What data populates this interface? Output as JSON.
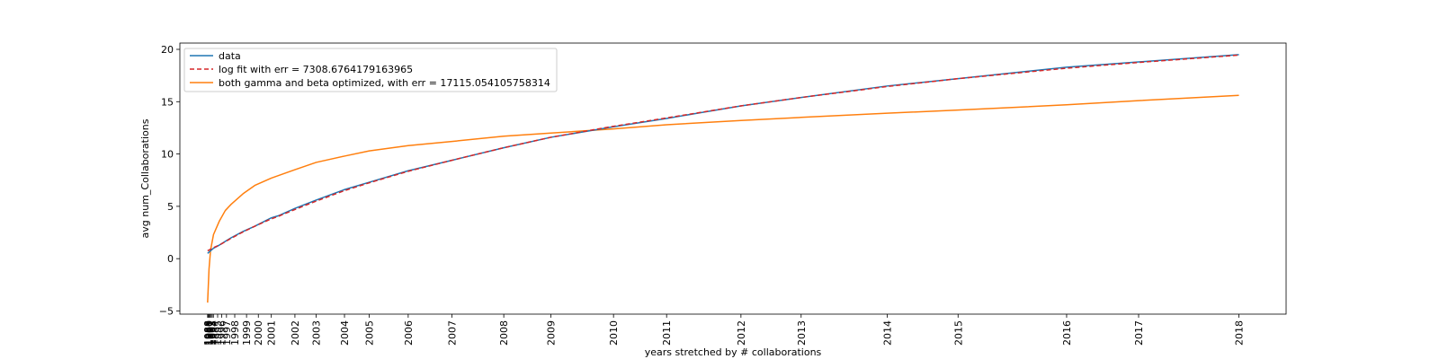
{
  "chart_data": {
    "type": "line",
    "xlabel": "years stretched by # collaborations",
    "ylabel": "avg num_Collaborations",
    "ylim": [
      -5.3,
      20.6
    ],
    "yticks": [
      -5,
      0,
      5,
      10,
      15,
      20
    ],
    "x_ticks": [
      {
        "label": "1988",
        "x": 0.0
      },
      {
        "label": "1989",
        "x": 0.06
      },
      {
        "label": "1990",
        "x": 0.13
      },
      {
        "label": "1991",
        "x": 0.21
      },
      {
        "label": "1992",
        "x": 0.3
      },
      {
        "label": "1993",
        "x": 0.39
      },
      {
        "label": "1994",
        "x": 0.49
      },
      {
        "label": "1995",
        "x": 0.85
      },
      {
        "label": "1996",
        "x": 1.2
      },
      {
        "label": "1997",
        "x": 1.6
      },
      {
        "label": "1998",
        "x": 2.3
      },
      {
        "label": "1999",
        "x": 3.3
      },
      {
        "label": "2000",
        "x": 4.3
      },
      {
        "label": "2001",
        "x": 5.4
      },
      {
        "label": "2002",
        "x": 7.4
      },
      {
        "label": "2003",
        "x": 9.2
      },
      {
        "label": "2004",
        "x": 11.6
      },
      {
        "label": "2005",
        "x": 13.7
      },
      {
        "label": "2006",
        "x": 17.0
      },
      {
        "label": "2007",
        "x": 20.7
      },
      {
        "label": "2008",
        "x": 25.1
      },
      {
        "label": "2009",
        "x": 29.1
      },
      {
        "label": "2010",
        "x": 34.4
      },
      {
        "label": "2011",
        "x": 38.9
      },
      {
        "label": "2012",
        "x": 45.2
      },
      {
        "label": "2013",
        "x": 50.3
      },
      {
        "label": "2014",
        "x": 57.6
      },
      {
        "label": "2015",
        "x": 63.6
      },
      {
        "label": "2016",
        "x": 72.8
      },
      {
        "label": "2017",
        "x": 78.9
      },
      {
        "label": "2018",
        "x": 87.4
      }
    ],
    "series": [
      {
        "name": "data",
        "color": "#1f77b4",
        "style": "solid",
        "points": [
          [
            0,
            0.5
          ],
          [
            0.5,
            1.0
          ],
          [
            1,
            1.3
          ],
          [
            2,
            2.0
          ],
          [
            3,
            2.6
          ],
          [
            4,
            3.1
          ],
          [
            5.4,
            3.9
          ],
          [
            6,
            4.1
          ],
          [
            7.4,
            4.8
          ],
          [
            9.2,
            5.6
          ],
          [
            11.6,
            6.6
          ],
          [
            13.7,
            7.3
          ],
          [
            17,
            8.4
          ],
          [
            20.7,
            9.4
          ],
          [
            25.1,
            10.6
          ],
          [
            29.1,
            11.6
          ],
          [
            34.4,
            12.6
          ],
          [
            38.9,
            13.4
          ],
          [
            45.2,
            14.6
          ],
          [
            50.3,
            15.4
          ],
          [
            57.6,
            16.5
          ],
          [
            63.6,
            17.2
          ],
          [
            72.8,
            18.3
          ],
          [
            78.9,
            18.8
          ],
          [
            87.4,
            19.5
          ]
        ]
      },
      {
        "name": "log fit with err = 7308.6764179163965",
        "color": "#d62728",
        "style": "dashed",
        "points": [
          [
            0,
            0.75
          ],
          [
            0.5,
            1.05
          ],
          [
            1,
            1.3
          ],
          [
            2,
            1.95
          ],
          [
            3,
            2.55
          ],
          [
            4,
            3.1
          ],
          [
            5.4,
            3.8
          ],
          [
            6,
            4.05
          ],
          [
            7.4,
            4.7
          ],
          [
            9.2,
            5.5
          ],
          [
            11.6,
            6.5
          ],
          [
            13.7,
            7.25
          ],
          [
            17,
            8.35
          ],
          [
            20.7,
            9.4
          ],
          [
            25.1,
            10.6
          ],
          [
            29.1,
            11.6
          ],
          [
            34.4,
            12.65
          ],
          [
            38.9,
            13.45
          ],
          [
            45.2,
            14.6
          ],
          [
            50.3,
            15.4
          ],
          [
            57.6,
            16.45
          ],
          [
            63.6,
            17.2
          ],
          [
            72.8,
            18.2
          ],
          [
            78.9,
            18.75
          ],
          [
            87.4,
            19.45
          ]
        ]
      },
      {
        "name": "both gamma and beta optimized, with err = 17115.054105758314",
        "color": "#ff7f0e",
        "style": "solid",
        "points": [
          [
            0,
            -4.2
          ],
          [
            0.12,
            -1.0
          ],
          [
            0.25,
            0.8
          ],
          [
            0.5,
            2.3
          ],
          [
            1,
            3.6
          ],
          [
            1.5,
            4.6
          ],
          [
            2,
            5.2
          ],
          [
            3,
            6.2
          ],
          [
            4,
            7.0
          ],
          [
            5.4,
            7.7
          ],
          [
            7.4,
            8.5
          ],
          [
            9.2,
            9.2
          ],
          [
            11.6,
            9.8
          ],
          [
            13.7,
            10.3
          ],
          [
            17,
            10.8
          ],
          [
            20.7,
            11.2
          ],
          [
            25.1,
            11.7
          ],
          [
            29.1,
            12.0
          ],
          [
            34.4,
            12.4
          ],
          [
            38.9,
            12.8
          ],
          [
            45.2,
            13.2
          ],
          [
            50.3,
            13.5
          ],
          [
            57.6,
            13.9
          ],
          [
            63.6,
            14.2
          ],
          [
            72.8,
            14.7
          ],
          [
            78.9,
            15.1
          ],
          [
            87.4,
            15.6
          ]
        ]
      }
    ],
    "legend": {
      "placement": "top-left"
    }
  }
}
